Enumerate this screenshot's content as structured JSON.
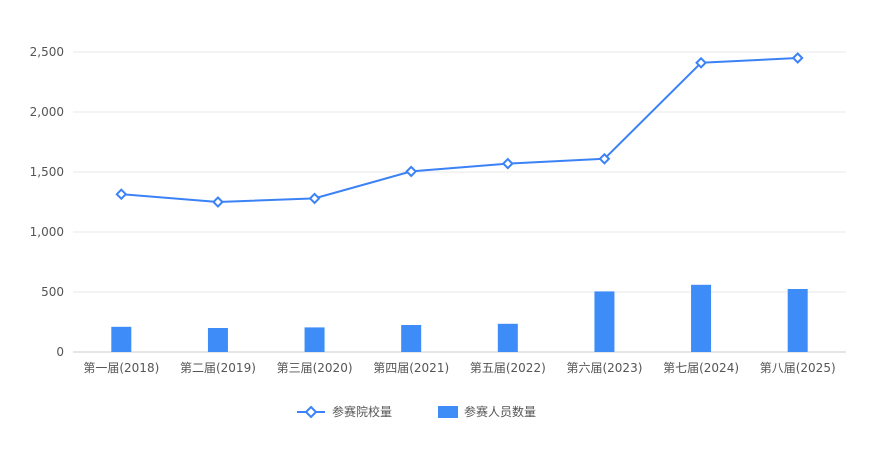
{
  "chart_data": {
    "type": "bar+line",
    "categories": [
      "第一届(2018)",
      "第二届(2019)",
      "第三届(2020)",
      "第四届(2021)",
      "第五届(2022)",
      "第六届(2023)",
      "第七届(2024)",
      "第八届(2025)"
    ],
    "series": [
      {
        "name": "参赛院校量",
        "type": "line",
        "values": [
          1315,
          1250,
          1280,
          1505,
          1570,
          1610,
          2410,
          2450
        ]
      },
      {
        "name": "参赛人员数量",
        "type": "bar",
        "values": [
          210,
          200,
          205,
          225,
          235,
          505,
          560,
          525
        ]
      }
    ],
    "yticks": [
      "0",
      "500",
      "1,000",
      "1,500",
      "2,000",
      "2,500"
    ],
    "ylim": [
      0,
      2500
    ],
    "grid": true,
    "legend_position": "bottom",
    "colors": {
      "line": "#3B82F6",
      "bar": "#3D8CF7",
      "grid": "#e9e9e9",
      "axis": "#cccccc"
    }
  }
}
